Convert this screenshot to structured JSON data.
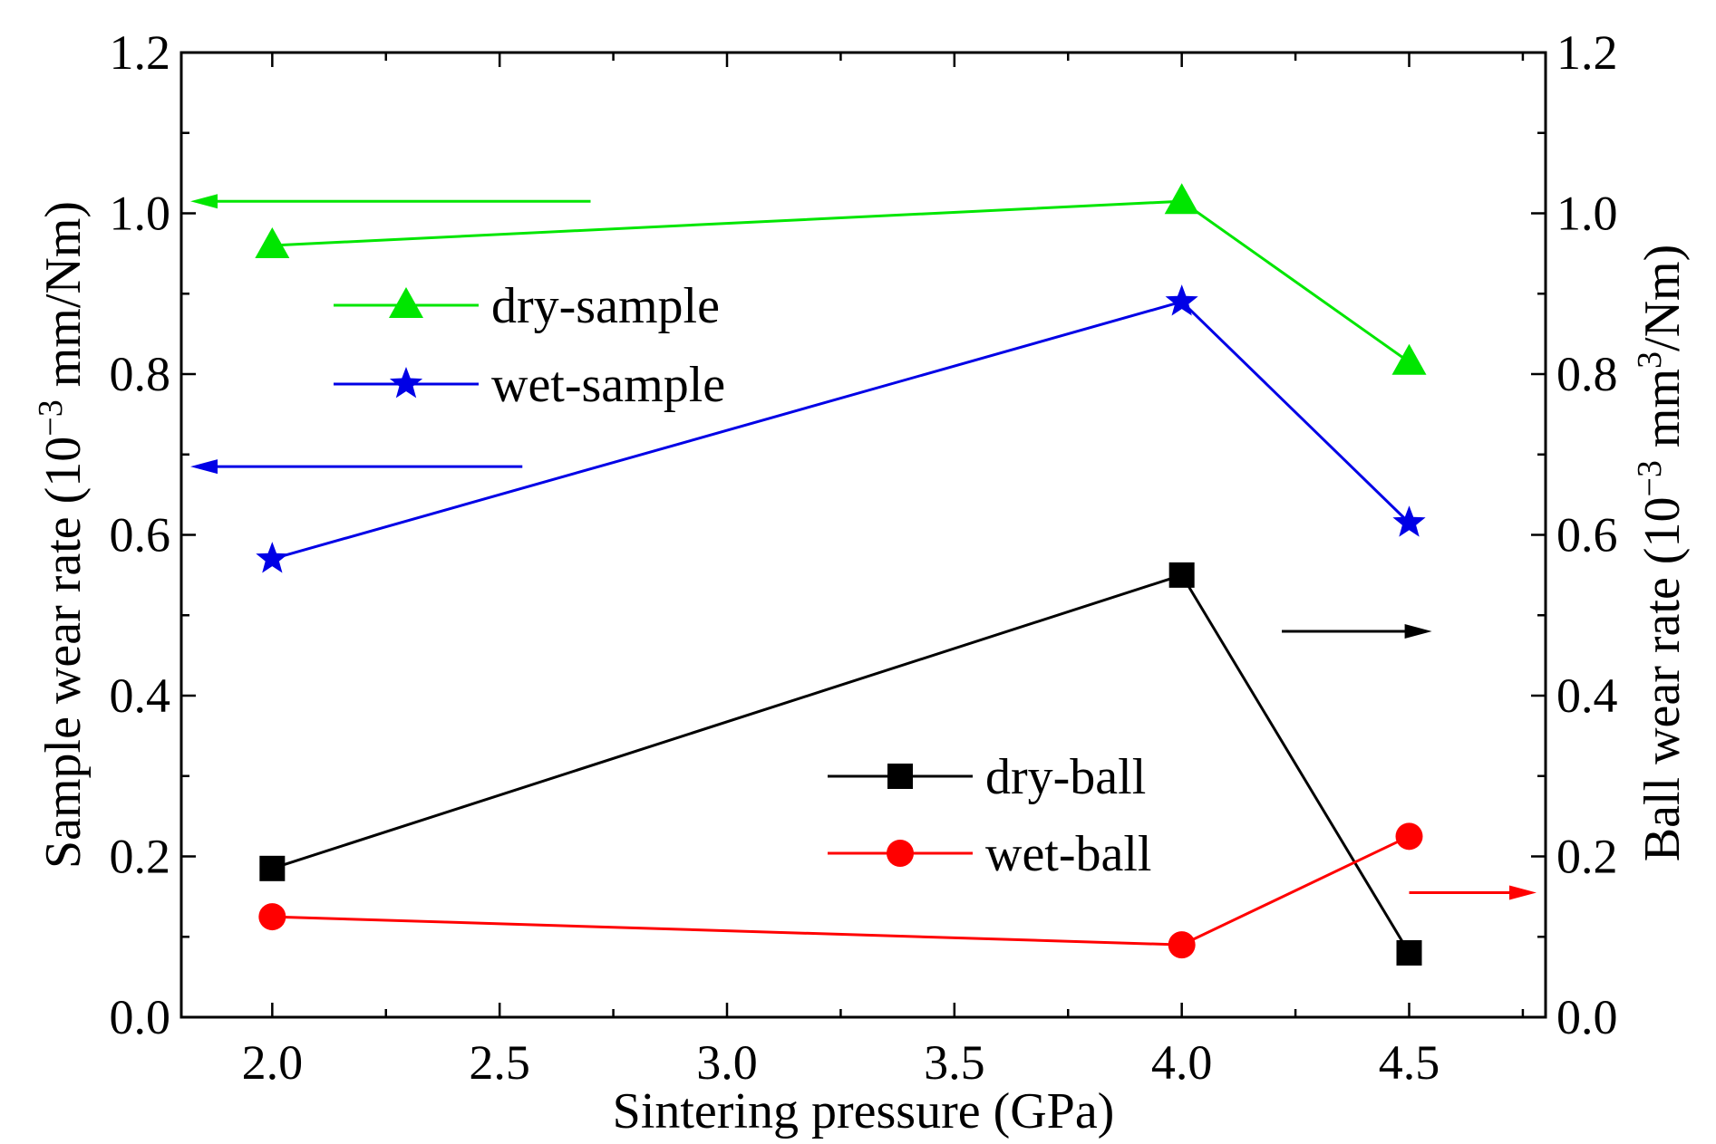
{
  "chart_data": {
    "type": "line",
    "xlabel": "Sintering pressure (GPa)",
    "ylabel_left": {
      "main": "Sample wear rate (10",
      "sup": "−3",
      "unit": " mm/Nm)"
    },
    "ylabel_right": {
      "main": "Ball wear rate (10",
      "sup": "−3",
      "unit": " mm",
      "unit_sup": "3",
      "unit_tail": "/Nm)"
    },
    "xlim": [
      1.8,
      4.8
    ],
    "ylim_left": [
      0.0,
      1.2
    ],
    "ylim_right": [
      0.0,
      1.2
    ],
    "x_ticks": [
      "2.0",
      "2.5",
      "3.0",
      "3.5",
      "4.0",
      "4.5"
    ],
    "y_ticks": [
      "0.0",
      "0.2",
      "0.4",
      "0.6",
      "0.8",
      "1.0",
      "1.2"
    ],
    "series": [
      {
        "name": "dry-sample",
        "axis": "left",
        "color": "#00e600",
        "marker": "triangle",
        "x": [
          2.0,
          4.0,
          4.5
        ],
        "values": [
          0.96,
          1.015,
          0.815
        ]
      },
      {
        "name": "wet-sample",
        "axis": "left",
        "color": "#0000e6",
        "marker": "star",
        "x": [
          2.0,
          4.0,
          4.5
        ],
        "values": [
          0.57,
          0.89,
          0.615
        ]
      },
      {
        "name": "dry-ball",
        "axis": "right",
        "color": "#000000",
        "marker": "square",
        "x": [
          2.0,
          4.0,
          4.5
        ],
        "values": [
          0.185,
          0.55,
          0.08
        ]
      },
      {
        "name": "wet-ball",
        "axis": "right",
        "color": "#ff0000",
        "marker": "circle",
        "x": [
          2.0,
          4.0,
          4.5
        ],
        "values": [
          0.125,
          0.09,
          0.225
        ]
      }
    ],
    "axis_arrows": [
      {
        "series": "dry-sample",
        "direction": "left",
        "x_from": 2.7,
        "x_to": 1.82,
        "y": 1.015
      },
      {
        "series": "wet-sample",
        "direction": "left",
        "x_from": 2.55,
        "x_to": 1.82,
        "y": 0.685
      },
      {
        "series": "dry-ball",
        "direction": "right",
        "x_from": 4.22,
        "x_to": 4.55,
        "y": 0.48
      },
      {
        "series": "wet-ball",
        "direction": "right",
        "x_from": 4.5,
        "x_to": 4.78,
        "y": 0.155
      }
    ]
  }
}
